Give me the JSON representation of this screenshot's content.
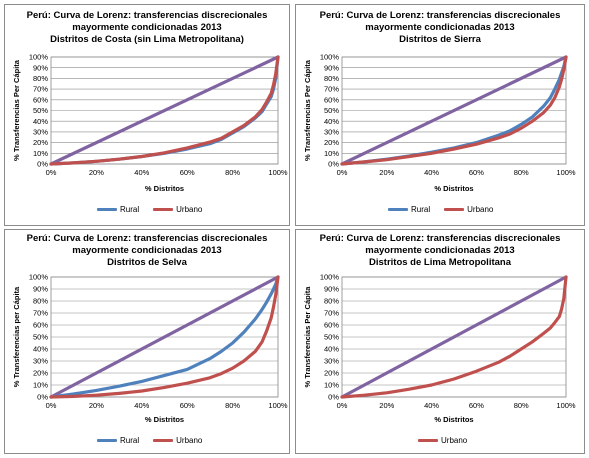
{
  "chart_data": [
    {
      "type": "line",
      "title": [
        "Perú: Curva de Lorenz: transferencias discrecionales",
        "mayormente condicionadas 2013",
        "Distritos de Costa (sin Lima Metropolitana)"
      ],
      "xlabel": "% Distritos",
      "ylabel": "% Transferencias Per Cápita",
      "xticks": [
        "0%",
        "20%",
        "40%",
        "60%",
        "80%",
        "100%"
      ],
      "yticks": [
        "0%",
        "10%",
        "20%",
        "30%",
        "40%",
        "50%",
        "60%",
        "70%",
        "80%",
        "90%",
        "100%"
      ],
      "xlim": [
        0,
        100
      ],
      "ylim": [
        0,
        100
      ],
      "grid": true,
      "legend_position": "bottom",
      "series": [
        {
          "name": "",
          "role": "equality",
          "color": "#8064a2",
          "x": [
            0,
            100
          ],
          "y": [
            0,
            100
          ]
        },
        {
          "name": "Rural",
          "color": "#4f81bd",
          "x": [
            0,
            10,
            20,
            30,
            40,
            50,
            60,
            70,
            75,
            80,
            85,
            90,
            93,
            95,
            97,
            98,
            99,
            100
          ],
          "y": [
            0,
            1,
            2.5,
            4.5,
            7,
            10,
            14,
            19,
            23,
            29,
            35,
            43,
            49,
            56,
            63,
            70,
            80,
            100
          ]
        },
        {
          "name": "Urbano",
          "color": "#c0504d",
          "x": [
            0,
            10,
            20,
            30,
            40,
            50,
            60,
            70,
            75,
            80,
            85,
            90,
            93,
            95,
            97,
            98,
            99,
            100
          ],
          "y": [
            0,
            1,
            2.5,
            4.5,
            7,
            10.5,
            15,
            20.5,
            24,
            30,
            36,
            44,
            51,
            58,
            66,
            74,
            84,
            100
          ]
        }
      ]
    },
    {
      "type": "line",
      "title": [
        "Perú: Curva de Lorenz: transferencias discrecionales",
        "mayormente condicionadas 2013",
        "Distritos de Sierra"
      ],
      "xlabel": "% Distritos",
      "ylabel": "% Transferencias Per Cápita",
      "xticks": [
        "0%",
        "20%",
        "40%",
        "60%",
        "80%",
        "100%"
      ],
      "yticks": [
        "0%",
        "10%",
        "20%",
        "30%",
        "40%",
        "50%",
        "60%",
        "70%",
        "80%",
        "90%",
        "100%"
      ],
      "xlim": [
        0,
        100
      ],
      "ylim": [
        0,
        100
      ],
      "grid": true,
      "legend_position": "bottom",
      "series": [
        {
          "name": "",
          "role": "equality",
          "color": "#8064a2",
          "x": [
            0,
            100
          ],
          "y": [
            0,
            100
          ]
        },
        {
          "name": "Rural",
          "color": "#4f81bd",
          "x": [
            0,
            10,
            20,
            30,
            40,
            50,
            60,
            70,
            75,
            80,
            85,
            90,
            93,
            95,
            97,
            98,
            99,
            100
          ],
          "y": [
            0,
            2,
            4.5,
            7.5,
            11,
            15,
            20,
            27,
            31,
            37,
            44,
            54,
            62,
            70,
            79,
            85,
            91,
            100
          ]
        },
        {
          "name": "Urbano",
          "color": "#c0504d",
          "x": [
            0,
            10,
            20,
            30,
            40,
            50,
            60,
            70,
            75,
            80,
            85,
            90,
            93,
            95,
            97,
            98,
            99,
            100
          ],
          "y": [
            0,
            2,
            4,
            7,
            10,
            14,
            18.5,
            24.5,
            28,
            33.5,
            40,
            48,
            55,
            62,
            72,
            79,
            88,
            100
          ]
        }
      ]
    },
    {
      "type": "line",
      "title": [
        "Perú: Curva de Lorenz: transferencias discrecionales",
        "mayormente condicionadas 2013",
        "Distritos de Selva"
      ],
      "xlabel": "% Distritos",
      "ylabel": "% Transferencias per Cápita",
      "xticks": [
        "0%",
        "20%",
        "40%",
        "60%",
        "80%",
        "100%"
      ],
      "yticks": [
        "0%",
        "10%",
        "20%",
        "30%",
        "40%",
        "50%",
        "60%",
        "70%",
        "80%",
        "90%",
        "100%"
      ],
      "xlim": [
        0,
        100
      ],
      "ylim": [
        0,
        100
      ],
      "grid": true,
      "legend_position": "bottom",
      "series": [
        {
          "name": "",
          "role": "equality",
          "color": "#8064a2",
          "x": [
            0,
            100
          ],
          "y": [
            0,
            100
          ]
        },
        {
          "name": "Rural",
          "color": "#4f81bd",
          "x": [
            0,
            10,
            20,
            30,
            40,
            50,
            60,
            70,
            75,
            80,
            85,
            90,
            93,
            95,
            97,
            98,
            99,
            100
          ],
          "y": [
            0,
            2.5,
            5.5,
            9,
            13,
            18,
            23,
            32,
            38,
            45,
            54,
            65,
            73,
            79,
            86,
            90,
            94,
            100
          ]
        },
        {
          "name": "Urbano",
          "color": "#c0504d",
          "x": [
            0,
            10,
            20,
            30,
            40,
            50,
            60,
            70,
            75,
            80,
            85,
            90,
            93,
            95,
            97,
            98,
            99,
            100
          ],
          "y": [
            0,
            0.5,
            1.5,
            3,
            5,
            8,
            11.5,
            16,
            19.5,
            24,
            30,
            38,
            46,
            55,
            66,
            75,
            85,
            100
          ]
        }
      ]
    },
    {
      "type": "line",
      "title": [
        "Perú: Curva de Lorenz: transferencias discrecionales",
        "mayormente condicionadas 2013",
        "Distritos de Lima Metropolitana"
      ],
      "xlabel": "% Distritos",
      "ylabel": "% Transferencias Per Cápita",
      "xticks": [
        "0%",
        "20%",
        "40%",
        "60%",
        "80%",
        "100%"
      ],
      "yticks": [
        "0%",
        "10%",
        "20%",
        "30%",
        "40%",
        "50%",
        "60%",
        "70%",
        "80%",
        "90%",
        "100%"
      ],
      "xlim": [
        0,
        100
      ],
      "ylim": [
        0,
        100
      ],
      "grid": true,
      "legend_position": "bottom",
      "series": [
        {
          "name": "",
          "role": "equality",
          "color": "#8064a2",
          "x": [
            0,
            100
          ],
          "y": [
            0,
            100
          ]
        },
        {
          "name": "Urbano",
          "color": "#c0504d",
          "x": [
            0,
            10,
            20,
            30,
            40,
            50,
            60,
            70,
            75,
            80,
            85,
            90,
            93,
            95,
            97,
            98,
            99,
            100
          ],
          "y": [
            0,
            1.5,
            3.5,
            6.5,
            10,
            15,
            21.5,
            29,
            34,
            40,
            46,
            53,
            57.5,
            62,
            67,
            73,
            82,
            100
          ]
        }
      ]
    }
  ]
}
